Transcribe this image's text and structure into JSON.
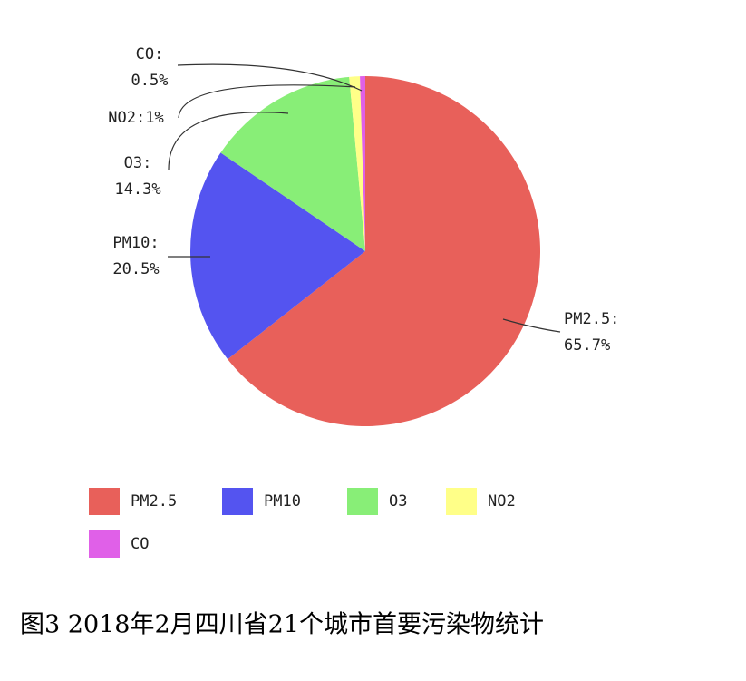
{
  "chart_data": {
    "type": "pie",
    "categories": [
      "PM2.5",
      "PM10",
      "O3",
      "NO2",
      "CO"
    ],
    "values": [
      65.7,
      20.5,
      14.3,
      1,
      0.5
    ],
    "value_labels": [
      "PM2.5:\n65.7%",
      "PM10:\n20.5%",
      "O3:\n14.3%",
      "NO2:1%",
      "CO:\n0.5%"
    ],
    "colors": [
      "#e8605a",
      "#5454f0",
      "#88ee77",
      "#ffff88",
      "#e060e8"
    ],
    "caption": "图3  2018年2月四川省21个城市首要污染物统计"
  }
}
